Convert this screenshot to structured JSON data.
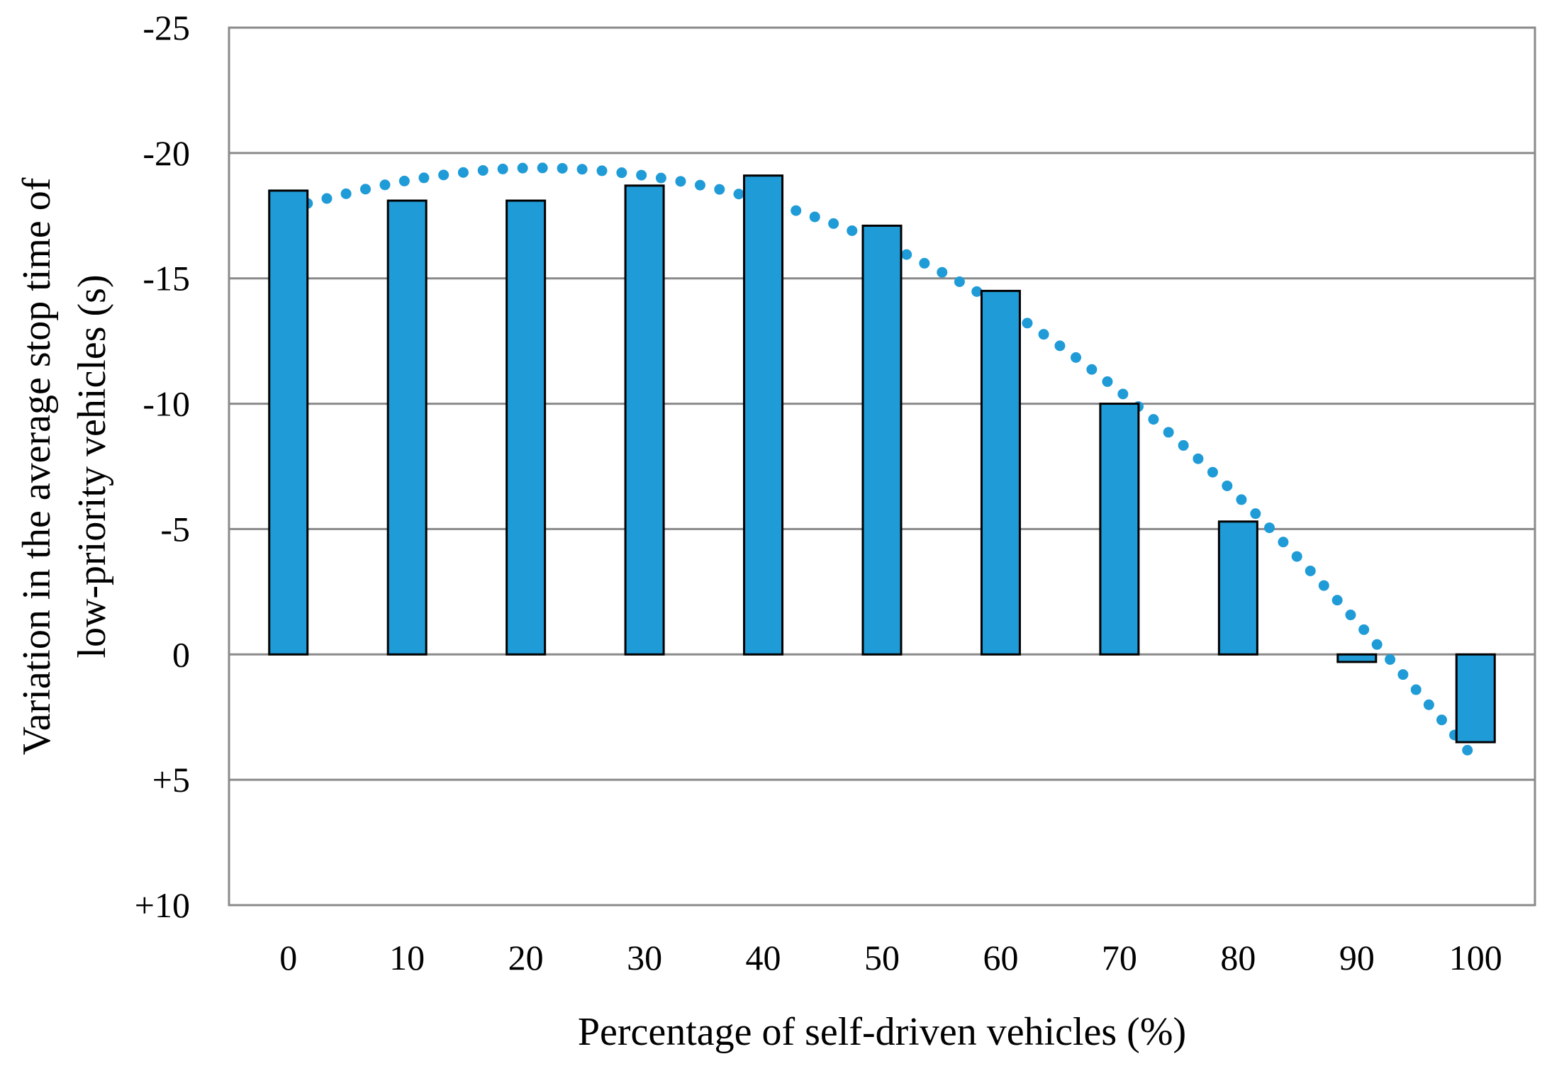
{
  "chart_data": {
    "type": "bar",
    "title": "",
    "xlabel": "Percentage of self-driven vehicles (%)",
    "ylabel": "Variation in the average stop time of low-priority vehicles (s)",
    "ylabel_lines": [
      "Variation in the average stop time of",
      "low-priority vehicles (s)"
    ],
    "categories": [
      "0",
      "10",
      "20",
      "30",
      "40",
      "50",
      "60",
      "70",
      "80",
      "90",
      "100"
    ],
    "series": [
      {
        "name": "Variation in average stop time",
        "color": "#1f9bd7",
        "values": [
          -18.5,
          -18.1,
          -18.1,
          -18.7,
          -19.1,
          -17.1,
          -14.5,
          -10.0,
          -5.3,
          0.3,
          3.5
        ]
      }
    ],
    "trendline": {
      "style": "dotted",
      "color": "#1f9bd7",
      "x": [
        0,
        10,
        20,
        30,
        40,
        50,
        60,
        70,
        80,
        90,
        100
      ],
      "values": [
        -17.8,
        -18.9,
        -19.4,
        -19.1,
        -18.1,
        -16.4,
        -13.9,
        -10.5,
        -6.3,
        -1.3,
        4.2
      ]
    },
    "y_axis": {
      "inverted": true,
      "ylim": [
        -25,
        10
      ],
      "ticks": [
        -25,
        -20,
        -15,
        -10,
        -5,
        0,
        5,
        10
      ],
      "tick_labels": [
        "-25",
        "-20",
        "-15",
        "-10",
        "-5",
        "0",
        "+5",
        "+10"
      ]
    },
    "grid": true,
    "legend": "none"
  }
}
